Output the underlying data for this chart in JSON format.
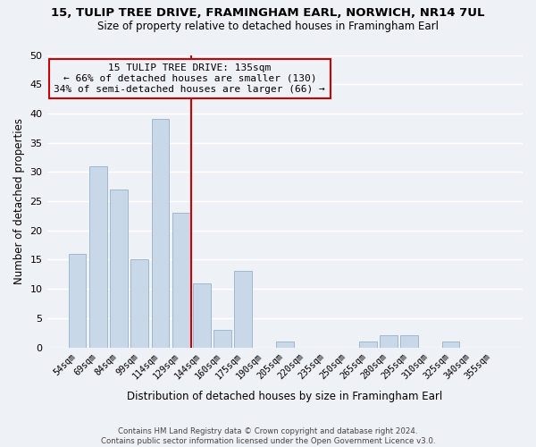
{
  "title1": "15, TULIP TREE DRIVE, FRAMINGHAM EARL, NORWICH, NR14 7UL",
  "title2": "Size of property relative to detached houses in Framingham Earl",
  "xlabel": "Distribution of detached houses by size in Framingham Earl",
  "ylabel": "Number of detached properties",
  "footer1": "Contains HM Land Registry data © Crown copyright and database right 2024.",
  "footer2": "Contains public sector information licensed under the Open Government Licence v3.0.",
  "bin_labels": [
    "54sqm",
    "69sqm",
    "84sqm",
    "99sqm",
    "114sqm",
    "129sqm",
    "144sqm",
    "160sqm",
    "175sqm",
    "190sqm",
    "205sqm",
    "220sqm",
    "235sqm",
    "250sqm",
    "265sqm",
    "280sqm",
    "295sqm",
    "310sqm",
    "325sqm",
    "340sqm",
    "355sqm"
  ],
  "bar_values": [
    16,
    31,
    27,
    15,
    39,
    23,
    11,
    3,
    13,
    0,
    1,
    0,
    0,
    0,
    1,
    2,
    2,
    0,
    1,
    0,
    0
  ],
  "bar_color": "#c8d8e8",
  "bar_edgecolor": "#a0b8cc",
  "ylim": [
    0,
    50
  ],
  "annotation_title": "15 TULIP TREE DRIVE: 135sqm",
  "annotation_line1": "← 66% of detached houses are smaller (130)",
  "annotation_line2": "34% of semi-detached houses are larger (66) →",
  "vline_color": "#cc0000",
  "annotation_box_edgecolor": "#cc0000",
  "background_color": "#eef2f7",
  "grid_color": "#ffffff"
}
